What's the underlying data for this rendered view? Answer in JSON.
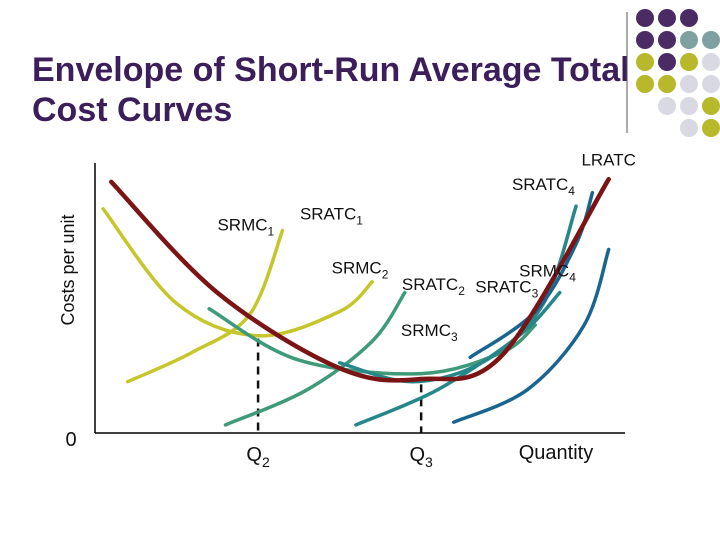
{
  "slide": {
    "title": "Envelope of Short-Run Average Total Cost Curves"
  },
  "decoration": {
    "dot_colors": [
      "#4b2b63",
      "#7fa0a0",
      "#b7b82a",
      "#d9d9e3"
    ]
  },
  "chart_data": {
    "type": "line",
    "title": "",
    "xlabel": "Quantity",
    "ylabel": "Costs per unit",
    "origin_label": "0",
    "x_ticks": [
      {
        "label": "Q",
        "sub": "2",
        "x": 2
      },
      {
        "label": "Q",
        "sub": "3",
        "x": 4
      }
    ],
    "xlim": [
      0,
      6.5
    ],
    "ylim": [
      0,
      10
    ],
    "grid": false,
    "legend": "none",
    "series": [
      {
        "name": "LRATC",
        "color": "#7b1414",
        "points": [
          [
            0.2,
            9.3
          ],
          [
            1.5,
            5.2
          ],
          [
            3.0,
            2.4
          ],
          [
            4.0,
            2.0
          ],
          [
            5.0,
            2.9
          ],
          [
            6.3,
            9.4
          ]
        ]
      },
      {
        "name": "SRATC1",
        "color": "#c6c62a",
        "points": [
          [
            0.1,
            8.3
          ],
          [
            1.0,
            4.8
          ],
          [
            2.0,
            3.6
          ],
          [
            3.0,
            4.5
          ],
          [
            3.4,
            5.6
          ]
        ]
      },
      {
        "name": "SRMC1",
        "color": "#c6c62a",
        "points": [
          [
            0.4,
            1.9
          ],
          [
            1.2,
            3.0
          ],
          [
            1.9,
            4.4
          ],
          [
            2.3,
            7.5
          ]
        ]
      },
      {
        "name": "SRATC2",
        "color": "#3e9a78",
        "points": [
          [
            1.4,
            4.6
          ],
          [
            2.5,
            2.7
          ],
          [
            4.0,
            2.2
          ],
          [
            5.0,
            3.0
          ],
          [
            5.4,
            4.0
          ]
        ]
      },
      {
        "name": "SRMC2",
        "color": "#3e9a78",
        "points": [
          [
            1.6,
            0.3
          ],
          [
            2.6,
            1.6
          ],
          [
            3.4,
            3.4
          ],
          [
            3.8,
            5.2
          ]
        ]
      },
      {
        "name": "SRATC3",
        "color": "#26878a",
        "points": [
          [
            3.0,
            2.6
          ],
          [
            3.9,
            1.9
          ],
          [
            4.8,
            2.7
          ],
          [
            5.5,
            4.8
          ],
          [
            5.9,
            8.4
          ]
        ]
      },
      {
        "name": "SRMC3",
        "color": "#26878a",
        "points": [
          [
            3.2,
            0.3
          ],
          [
            4.2,
            1.6
          ],
          [
            5.2,
            3.6
          ],
          [
            5.7,
            5.2
          ]
        ]
      },
      {
        "name": "SRATC4",
        "color": "#1a6590",
        "points": [
          [
            4.6,
            2.8
          ],
          [
            5.4,
            4.5
          ],
          [
            5.9,
            7.0
          ],
          [
            6.1,
            8.9
          ]
        ]
      },
      {
        "name": "SRMC4",
        "color": "#1a6590",
        "points": [
          [
            4.4,
            0.4
          ],
          [
            5.3,
            1.6
          ],
          [
            6.0,
            4.0
          ],
          [
            6.3,
            6.8
          ]
        ]
      }
    ],
    "labels": [
      {
        "text": "LRATC",
        "sub": "",
        "x": 6.3,
        "y": 9.9
      },
      {
        "text": "SRATC",
        "sub": "4",
        "x": 5.5,
        "y": 9.0
      },
      {
        "text": "SRATC",
        "sub": "1",
        "x": 2.9,
        "y": 7.9
      },
      {
        "text": "SRMC",
        "sub": "1",
        "x": 1.85,
        "y": 7.5
      },
      {
        "text": "SRMC",
        "sub": "2",
        "x": 3.25,
        "y": 5.9
      },
      {
        "text": "SRATC",
        "sub": "2",
        "x": 4.15,
        "y": 5.3
      },
      {
        "text": "SRATC",
        "sub": "3",
        "x": 5.05,
        "y": 5.2
      },
      {
        "text": "SRMC",
        "sub": "4",
        "x": 5.55,
        "y": 5.8
      },
      {
        "text": "SRMC",
        "sub": "3",
        "x": 4.1,
        "y": 3.6
      }
    ]
  }
}
